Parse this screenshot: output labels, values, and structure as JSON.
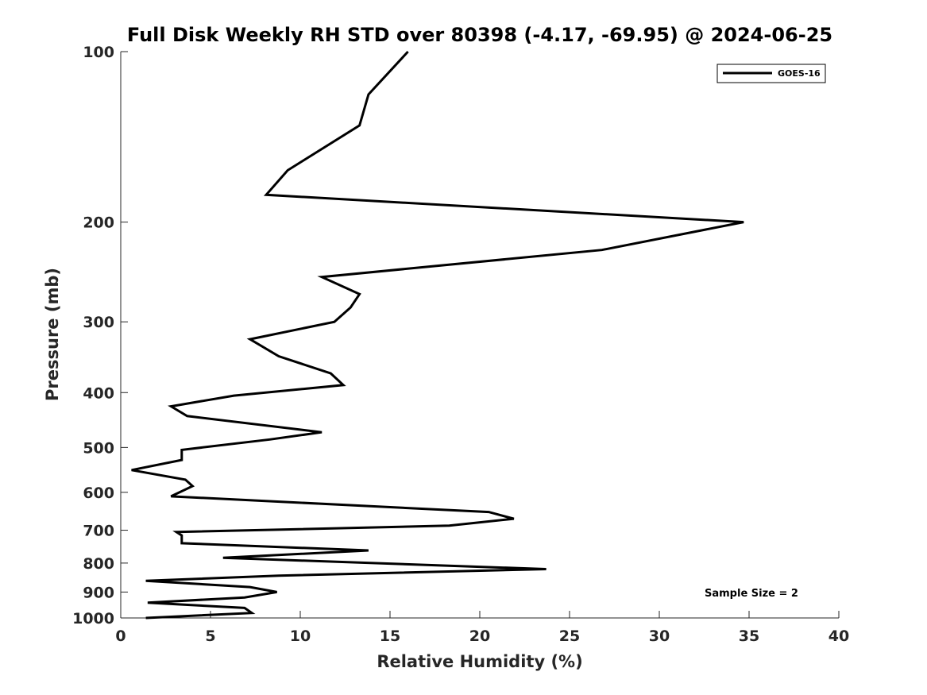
{
  "chart_data": {
    "type": "line",
    "title": "Full Disk Weekly RH STD over 80398 (-4.17, -69.95) @ 2024-06-25",
    "xlabel": "Relative Humidity (%)",
    "ylabel": "Pressure (mb)",
    "xlim": [
      0,
      40
    ],
    "ylim": [
      100,
      1000
    ],
    "yscale": "log",
    "y_reversed": true,
    "xticks": [
      0,
      5,
      10,
      15,
      20,
      25,
      30,
      35,
      40
    ],
    "xtick_labels": [
      "0",
      "5",
      "10",
      "15",
      "20",
      "25",
      "30",
      "35",
      "40"
    ],
    "yticks": [
      100,
      200,
      300,
      400,
      500,
      600,
      700,
      800,
      900,
      1000
    ],
    "ytick_labels": [
      "100",
      "200",
      "300",
      "400",
      "500",
      "600",
      "700",
      "800",
      "900",
      "1000"
    ],
    "grid": false,
    "legend_position": "top-right",
    "annotation": "Sample Size = 2",
    "series": [
      {
        "name": "GOES-16",
        "color": "#000000",
        "x": [
          16.0,
          13.8,
          13.3,
          9.3,
          8.1,
          34.7,
          26.8,
          11.2,
          13.3,
          12.8,
          11.9,
          7.2,
          8.8,
          11.7,
          12.4,
          6.3,
          2.8,
          3.7,
          11.2,
          8.3,
          3.4,
          3.4,
          0.6,
          3.6,
          4.0,
          2.8,
          20.5,
          21.9,
          18.3,
          3.1,
          3.4,
          3.4,
          13.8,
          5.7,
          23.7,
          8.8,
          1.4,
          7.2,
          8.7,
          6.9,
          1.5,
          6.9,
          7.3,
          1.4
        ],
        "y": [
          100,
          119,
          135,
          162,
          179,
          200,
          224,
          250,
          268,
          283,
          300,
          322,
          345,
          370,
          388,
          405,
          423,
          440,
          470,
          484,
          505,
          526,
          548,
          570,
          585,
          610,
          650,
          668,
          687,
          705,
          715,
          738,
          760,
          783,
          820,
          842,
          860,
          882,
          900,
          920,
          940,
          960,
          980,
          1000
        ]
      }
    ]
  }
}
